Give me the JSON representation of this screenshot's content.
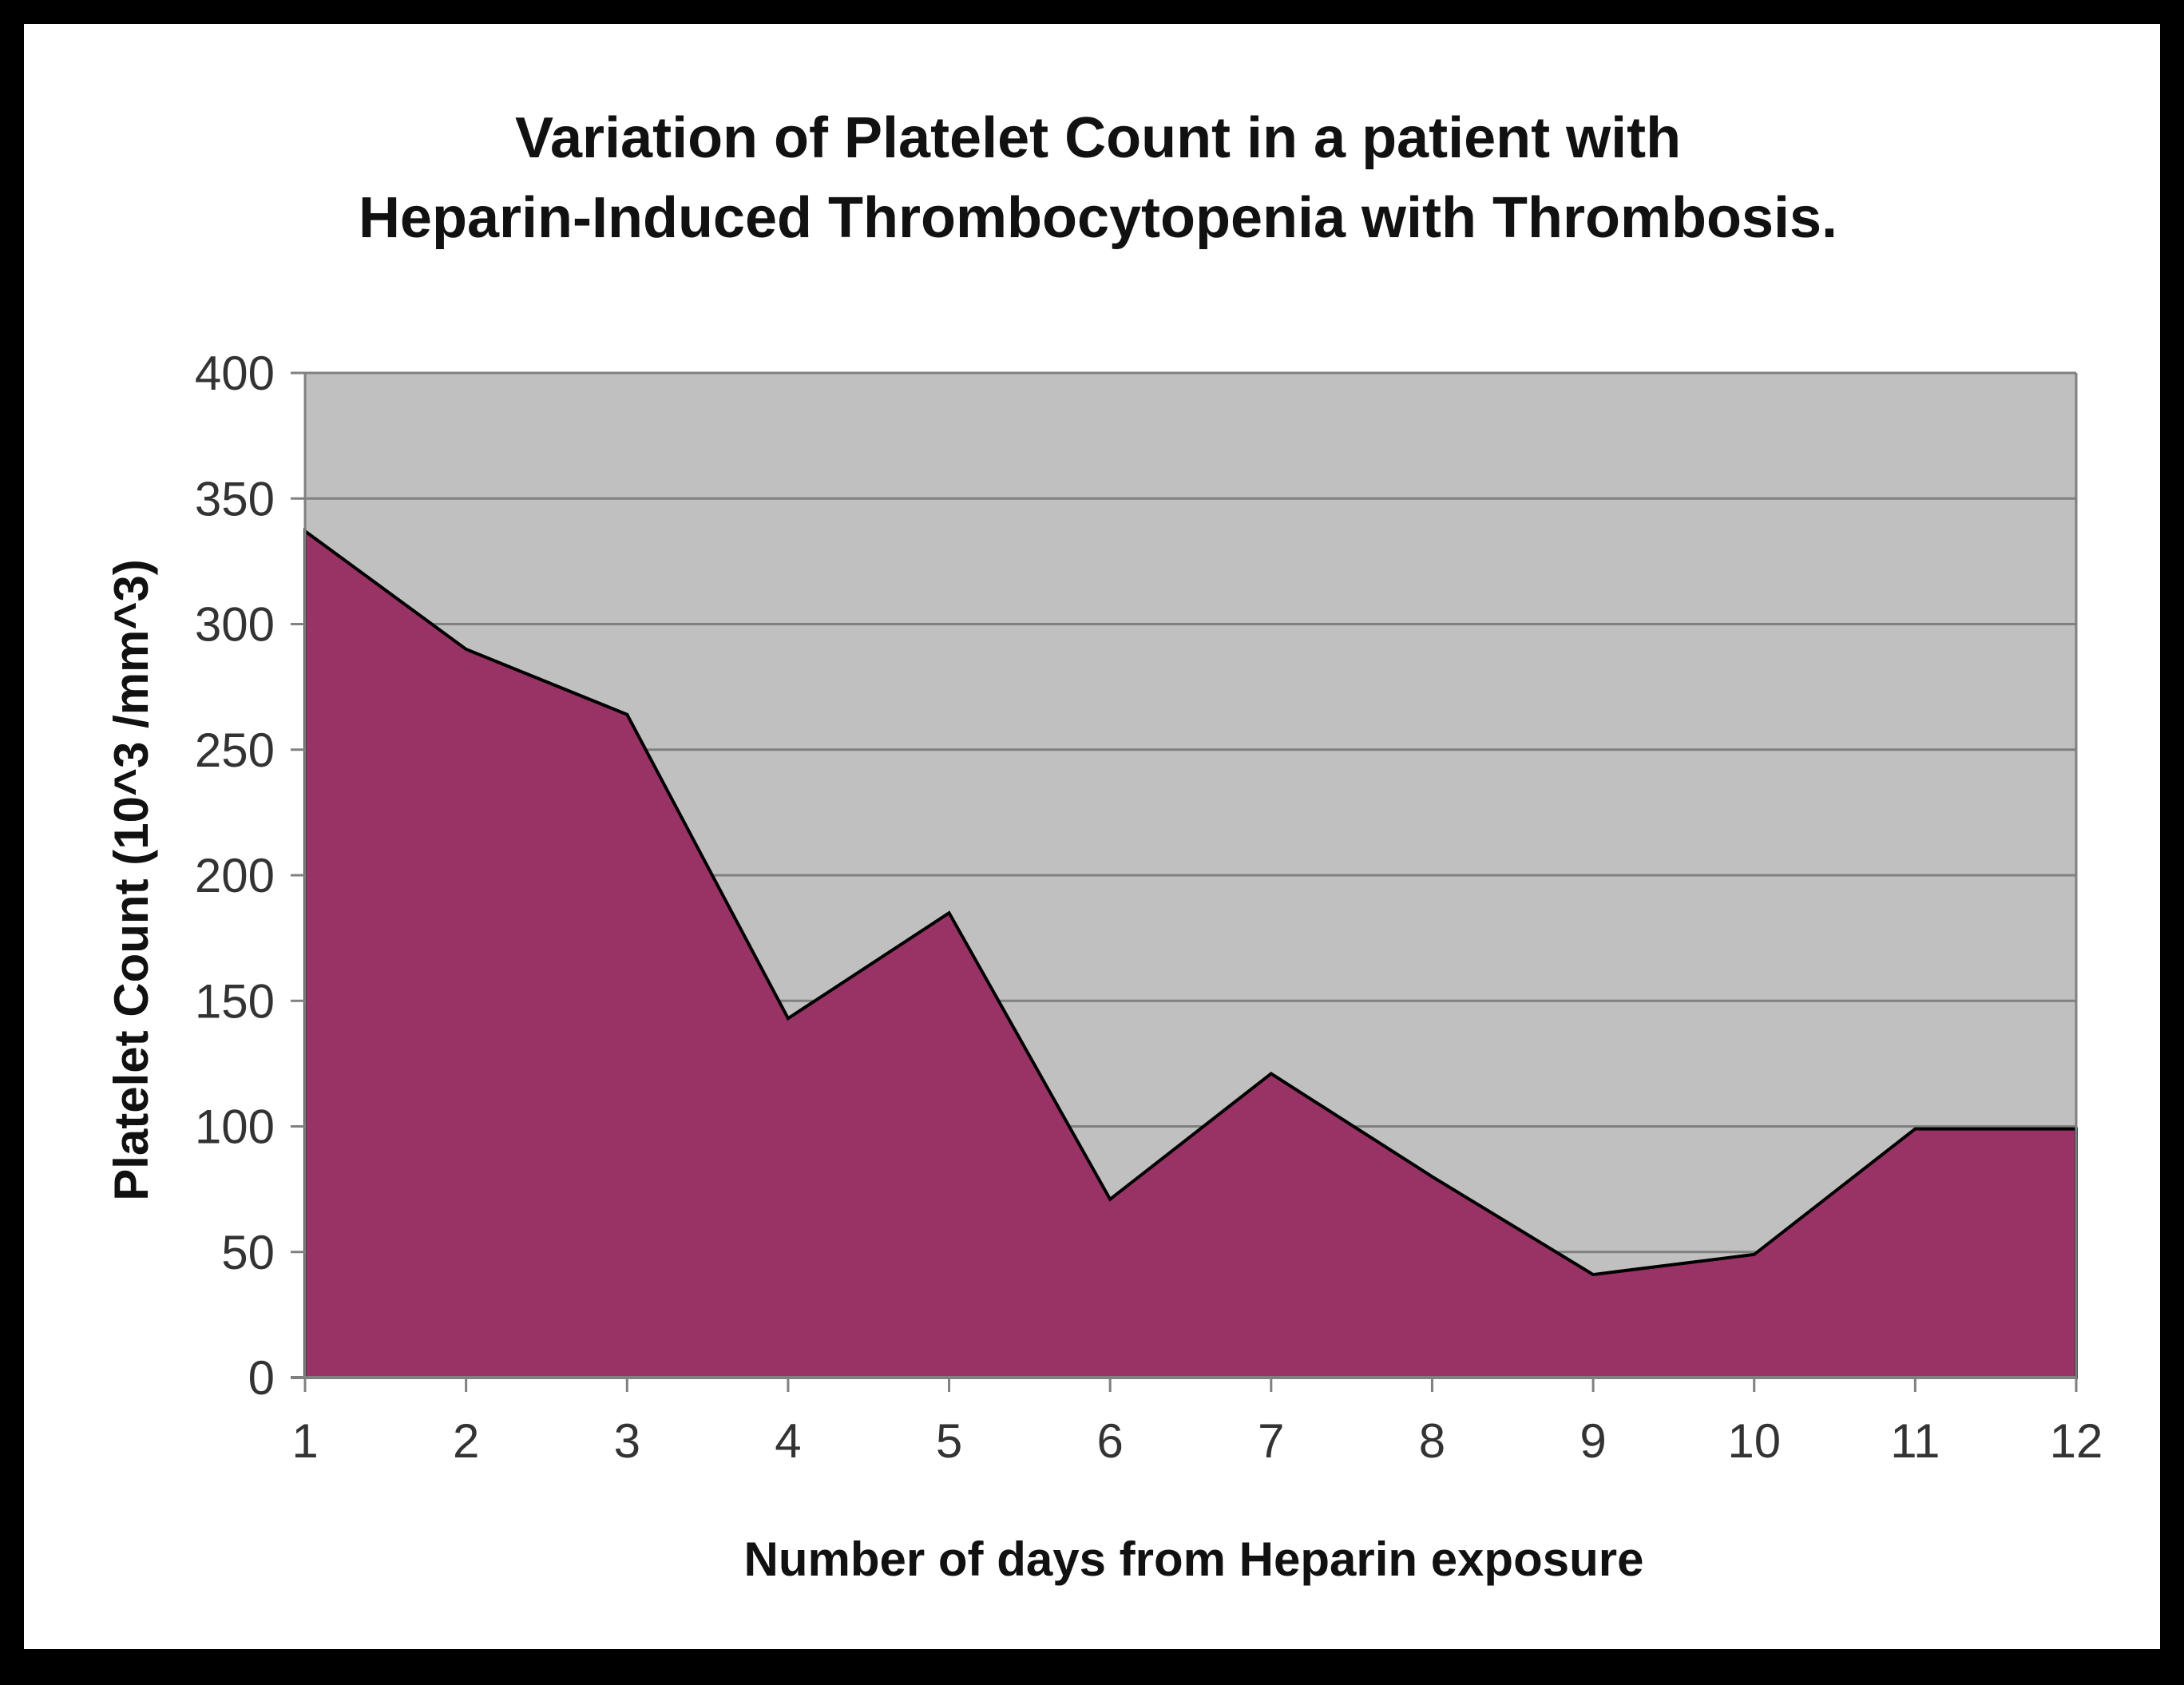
{
  "chart_data": {
    "type": "area",
    "title_lines": [
      "Variation of Platelet Count in a patient with",
      "Heparin-Induced Thrombocytopenia with Thrombosis."
    ],
    "xlabel": "Number of days from Heparin exposure",
    "ylabel": "Platelet Count  (10^3 /mm^3)",
    "x": [
      1,
      2,
      3,
      4,
      5,
      6,
      7,
      8,
      9,
      10,
      11,
      12
    ],
    "values": [
      337,
      290,
      264,
      143,
      185,
      71,
      121,
      80,
      41,
      49,
      99,
      99
    ],
    "ylim": [
      0,
      400
    ],
    "yticks": [
      0,
      50,
      100,
      150,
      200,
      250,
      300,
      350,
      400
    ],
    "xticks": [
      "1",
      "2",
      "3",
      "4",
      "5",
      "6",
      "7",
      "8",
      "9",
      "10",
      "11",
      "12"
    ],
    "grid": true,
    "legend": "none",
    "colors": {
      "area_fill": "#993366",
      "plot_background": "#c0c0c0",
      "gridline": "#808080",
      "outline": "#000000"
    }
  }
}
